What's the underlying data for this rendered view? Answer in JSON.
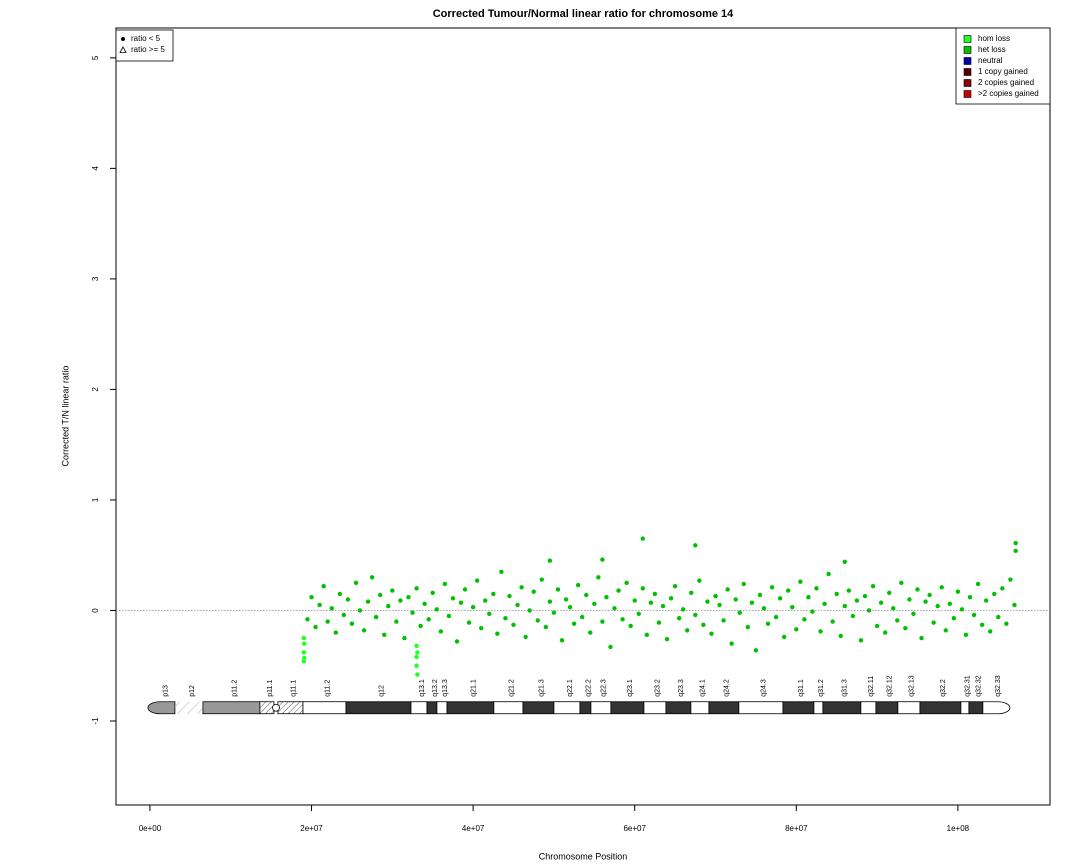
{
  "chart_data": {
    "type": "scatter",
    "title": "Corrected Tumour/Normal linear ratio for chromosome  14",
    "x_label": "Chromosome Position",
    "y_label": "Corrected T/N linear ratio",
    "xlim": [
      -4200000,
      111400000
    ],
    "ylim": [
      -1.76,
      5.27
    ],
    "xticks": [
      {
        "value": 0,
        "label": "0e+00"
      },
      {
        "value": 20000000,
        "label": "2e+07"
      },
      {
        "value": 40000000,
        "label": "4e+07"
      },
      {
        "value": 60000000,
        "label": "6e+07"
      },
      {
        "value": 80000000,
        "label": "8e+07"
      },
      {
        "value": 100000000,
        "label": "1e+08"
      }
    ],
    "yticks": [
      -1,
      0,
      1,
      2,
      3,
      4,
      5
    ],
    "reference_line": 0,
    "legend": "top-right",
    "shape_legend_position": "top-left",
    "shape_legend": [
      "ratio < 5",
      "ratio >= 5"
    ],
    "series": [
      {
        "name": "hom loss",
        "color": "#22ff22",
        "x": [
          19050000,
          19050000,
          19050000,
          19100000,
          19100000,
          33000000,
          33000000,
          33000000,
          33100000,
          33100000
        ],
        "values": [
          -0.25,
          -0.38,
          -0.46,
          -0.3,
          -0.43,
          -0.32,
          -0.42,
          -0.5,
          -0.38,
          -0.58
        ]
      },
      {
        "name": "het loss",
        "color": "#00c000",
        "x": [
          19500000.0,
          20000000.0,
          20500000.0,
          21000000.0,
          21500000.0,
          22000000.0,
          22500000.0,
          23000000.0,
          23500000.0,
          24000000.0,
          24500000.0,
          25000000.0,
          25500000.0,
          26000000.0,
          26500000.0,
          27000000.0,
          27500000.0,
          28000000.0,
          28500000.0,
          29000000.0,
          29500000.0,
          30000000.0,
          30500000.0,
          31000000.0,
          31500000.0,
          32000000.0,
          32500000.0,
          33000000.0,
          33500000.0,
          34000000.0,
          34500000.0,
          35000000.0,
          35500000.0,
          36000000.0,
          36500000.0,
          37000000.0,
          37500000.0,
          38000000.0,
          38500000.0,
          39000000.0,
          39500000.0,
          40000000.0,
          40500000.0,
          41000000.0,
          41500000.0,
          42000000.0,
          42500000.0,
          43000000.0,
          43500000.0,
          44000000.0,
          44500000.0,
          45000000.0,
          45500000.0,
          46000000.0,
          46500000.0,
          47000000.0,
          47500000.0,
          48000000.0,
          48500000.0,
          49000000.0,
          49500000.0,
          50000000.0,
          50500000.0,
          51000000.0,
          51500000.0,
          52000000.0,
          52500000.0,
          53000000.0,
          53500000.0,
          54000000.0,
          54500000.0,
          55000000.0,
          55500000.0,
          56000000.0,
          56500000.0,
          57000000.0,
          57500000.0,
          58000000.0,
          58500000.0,
          59000000.0,
          59500000.0,
          60000000.0,
          60500000.0,
          61000000.0,
          61500000.0,
          62000000.0,
          62500000.0,
          63000000.0,
          63500000.0,
          64000000.0,
          64500000.0,
          65000000.0,
          65500000.0,
          66000000.0,
          66500000.0,
          67000000.0,
          67500000.0,
          68000000.0,
          68500000.0,
          69000000.0,
          69500000.0,
          70000000.0,
          70500000.0,
          71000000.0,
          71500000.0,
          72000000.0,
          72500000.0,
          73000000.0,
          73500000.0,
          74000000.0,
          74500000.0,
          75000000.0,
          75500000.0,
          76000000.0,
          76500000.0,
          77000000.0,
          77500000.0,
          78000000.0,
          78500000.0,
          79000000.0,
          79500000.0,
          80000000.0,
          80500000.0,
          81000000.0,
          81500000.0,
          82000000.0,
          82500000.0,
          83000000.0,
          83500000.0,
          84000000.0,
          84500000.0,
          85000000.0,
          85500000.0,
          86000000.0,
          86500000.0,
          87000000.0,
          87500000.0,
          88000000.0,
          88500000.0,
          89000000.0,
          89500000.0,
          90000000.0,
          90500000.0,
          91000000.0,
          91500000.0,
          92000000.0,
          92500000.0,
          93000000.0,
          93500000.0,
          94000000.0,
          94500000.0,
          95000000.0,
          95500000.0,
          96000000.0,
          96500000.0,
          97000000.0,
          97500000.0,
          98000000.0,
          98500000.0,
          99000000.0,
          99500000.0,
          100000000.0,
          100500000.0,
          101000000.0,
          101500000.0,
          102000000.0,
          102500000.0,
          103000000.0,
          103500000.0,
          104000000.0,
          104500000.0,
          105000000.0,
          105500000.0,
          106000000.0,
          106500000.0,
          107000000.0,
          61000000.0,
          67500000.0,
          107150000.0,
          107150000.0,
          49500000.0,
          56000000.0,
          86000000.0
        ],
        "values": [
          -0.08,
          0.12,
          -0.15,
          0.05,
          0.22,
          -0.1,
          0.02,
          -0.2,
          0.15,
          -0.04,
          0.1,
          -0.12,
          0.25,
          0.0,
          -0.18,
          0.08,
          0.3,
          -0.06,
          0.14,
          -0.22,
          0.04,
          0.18,
          -0.1,
          0.09,
          -0.25,
          0.12,
          -0.02,
          0.2,
          -0.14,
          0.06,
          -0.08,
          0.16,
          0.01,
          -0.19,
          0.24,
          -0.05,
          0.11,
          -0.28,
          0.07,
          0.19,
          -0.11,
          0.03,
          0.27,
          -0.16,
          0.09,
          -0.03,
          0.15,
          -0.21,
          0.35,
          -0.07,
          0.13,
          -0.13,
          0.05,
          0.21,
          -0.24,
          0.0,
          0.17,
          -0.09,
          0.28,
          -0.15,
          0.08,
          -0.02,
          0.19,
          -0.27,
          0.1,
          0.03,
          -0.12,
          0.23,
          -0.06,
          0.14,
          -0.2,
          0.06,
          0.3,
          -0.1,
          0.12,
          -0.33,
          0.02,
          0.18,
          -0.08,
          0.25,
          -0.14,
          0.09,
          -0.03,
          0.2,
          -0.22,
          0.07,
          0.15,
          -0.11,
          0.04,
          -0.26,
          0.11,
          0.22,
          -0.07,
          0.01,
          -0.18,
          0.16,
          -0.04,
          0.27,
          -0.13,
          0.08,
          -0.21,
          0.13,
          0.05,
          -0.09,
          0.19,
          -0.3,
          0.1,
          -0.02,
          0.24,
          -0.15,
          0.07,
          -0.36,
          0.14,
          0.02,
          -0.12,
          0.21,
          -0.06,
          0.11,
          -0.24,
          0.18,
          0.03,
          -0.17,
          0.26,
          -0.08,
          0.12,
          -0.01,
          0.2,
          -0.19,
          0.06,
          0.33,
          -0.1,
          0.15,
          -0.23,
          0.04,
          0.18,
          -0.05,
          0.09,
          -0.27,
          0.13,
          0.0,
          0.22,
          -0.14,
          0.07,
          -0.2,
          0.16,
          0.02,
          -0.09,
          0.25,
          -0.16,
          0.1,
          -0.03,
          0.19,
          -0.25,
          0.08,
          0.14,
          -0.11,
          0.04,
          0.21,
          -0.18,
          0.06,
          -0.07,
          0.17,
          0.01,
          -0.22,
          0.12,
          -0.04,
          0.24,
          -0.13,
          0.09,
          -0.19,
          0.15,
          -0.06,
          0.2,
          -0.12,
          0.28,
          0.05,
          0.65,
          0.59,
          0.61,
          0.54,
          0.45,
          0.46,
          0.44
        ]
      },
      {
        "name": "neutral",
        "color": "#0000aa",
        "x": [],
        "values": []
      },
      {
        "name": "1 copy gained",
        "color": "#5a0000",
        "x": [],
        "values": []
      },
      {
        "name": "2 copies gained",
        "color": "#8b0000",
        "x": [],
        "values": []
      },
      {
        "name": ">2 copies gained",
        "color": "#cc0000",
        "x": [],
        "values": []
      }
    ],
    "ideogram_y": -0.88,
    "centromere": 15600000,
    "bands": [
      {
        "label": "p13",
        "start": 0,
        "end": 3090000,
        "fill": "#999999"
      },
      {
        "label": "p12",
        "start": 3090000,
        "end": 6560000,
        "fill": "stalk"
      },
      {
        "label": "p11.2",
        "start": 6560000,
        "end": 13610000,
        "fill": "#999999"
      },
      {
        "label": "p11.1",
        "start": 13610000,
        "end": 15350000,
        "fill": "hatch"
      },
      {
        "label": "q11.1",
        "start": 15840000,
        "end": 18940000,
        "fill": "hatch"
      },
      {
        "label": "q11.2",
        "start": 18940000,
        "end": 24260000,
        "fill": "#ffffff"
      },
      {
        "label": "q12",
        "start": 24260000,
        "end": 32310000,
        "fill": "#333333"
      },
      {
        "label": "q13.1",
        "start": 32310000,
        "end": 34290000,
        "fill": "#ffffff"
      },
      {
        "label": "q13.2",
        "start": 34290000,
        "end": 35520000,
        "fill": "#333333"
      },
      {
        "label": "q13.3",
        "start": 35520000,
        "end": 36770000,
        "fill": "#ffffff"
      },
      {
        "label": "q21.1",
        "start": 36770000,
        "end": 42570000,
        "fill": "#333333"
      },
      {
        "label": "q21.2",
        "start": 42570000,
        "end": 46170000,
        "fill": "#ffffff"
      },
      {
        "label": "q21.3",
        "start": 46170000,
        "end": 50000000,
        "fill": "#333333"
      },
      {
        "label": "q22.1",
        "start": 50000000,
        "end": 53220000,
        "fill": "#ffffff"
      },
      {
        "label": "q22.2",
        "start": 53220000,
        "end": 54580000,
        "fill": "#333333"
      },
      {
        "label": "q22.3",
        "start": 54580000,
        "end": 57050000,
        "fill": "#ffffff"
      },
      {
        "label": "q23.1",
        "start": 57050000,
        "end": 61140000,
        "fill": "#333333"
      },
      {
        "label": "q23.2",
        "start": 61140000,
        "end": 63860000,
        "fill": "#ffffff"
      },
      {
        "label": "q23.3",
        "start": 63860000,
        "end": 66950000,
        "fill": "#333333"
      },
      {
        "label": "q24.1",
        "start": 66950000,
        "end": 69180000,
        "fill": "#ffffff"
      },
      {
        "label": "q24.2",
        "start": 69180000,
        "end": 72890000,
        "fill": "#333333"
      },
      {
        "label": "q24.3",
        "start": 72890000,
        "end": 78340000,
        "fill": "#ffffff"
      },
      {
        "label": "q31.1",
        "start": 78340000,
        "end": 82180000,
        "fill": "#333333"
      },
      {
        "label": "q31.2",
        "start": 82180000,
        "end": 83290000,
        "fill": "#ffffff"
      },
      {
        "label": "q31.3",
        "start": 83290000,
        "end": 87990000,
        "fill": "#333333"
      },
      {
        "label": "q32.11",
        "start": 87990000,
        "end": 89850000,
        "fill": "#ffffff"
      },
      {
        "label": "q32.12",
        "start": 89850000,
        "end": 92570000,
        "fill": "#333333"
      },
      {
        "label": "q32.13",
        "start": 92570000,
        "end": 95300000,
        "fill": "#ffffff"
      },
      {
        "label": "q32.2",
        "start": 95300000,
        "end": 100370000,
        "fill": "#333333"
      },
      {
        "label": "q32.31",
        "start": 100370000,
        "end": 101360000,
        "fill": "#ffffff"
      },
      {
        "label": "q32.32",
        "start": 101360000,
        "end": 103090000,
        "fill": "#333333"
      },
      {
        "label": "q32.33",
        "start": 103090000,
        "end": 106190000,
        "fill": "#ffffff"
      }
    ]
  }
}
